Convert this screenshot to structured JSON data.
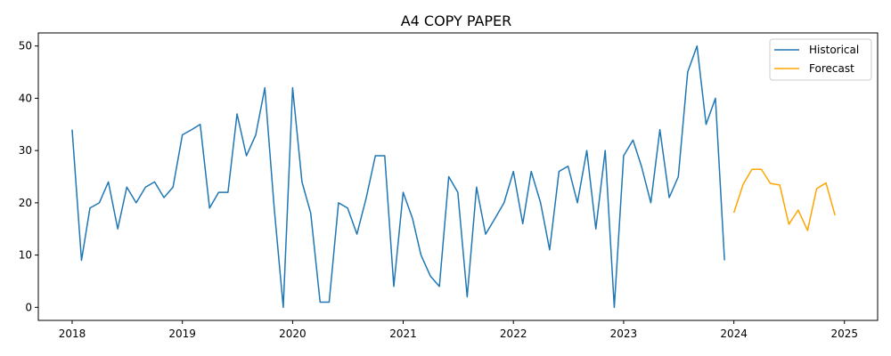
{
  "chart_data": {
    "type": "line",
    "title": "A4  COPY PAPER",
    "xlabel": "",
    "ylabel": "",
    "x_axis": "monthly dates",
    "xlim": [
      "2017-09-11",
      "2025-04-21"
    ],
    "ylim": [
      -2.5,
      52.5
    ],
    "x_ticks": [
      "2018",
      "2019",
      "2020",
      "2021",
      "2022",
      "2023",
      "2024",
      "2025"
    ],
    "y_ticks": [
      "0",
      "10",
      "20",
      "30",
      "40",
      "50"
    ],
    "grid": false,
    "legend_position": "top-right",
    "series": [
      {
        "name": "Historical",
        "color": "#1f77b4",
        "x": [
          "2018-01",
          "2018-02",
          "2018-03",
          "2018-04",
          "2018-05",
          "2018-06",
          "2018-07",
          "2018-08",
          "2018-09",
          "2018-10",
          "2018-11",
          "2018-12",
          "2019-01",
          "2019-02",
          "2019-03",
          "2019-04",
          "2019-05",
          "2019-06",
          "2019-07",
          "2019-08",
          "2019-09",
          "2019-10",
          "2019-11",
          "2019-12",
          "2020-01",
          "2020-02",
          "2020-03",
          "2020-04",
          "2020-05",
          "2020-06",
          "2020-07",
          "2020-08",
          "2020-09",
          "2020-10",
          "2020-11",
          "2020-12",
          "2021-01",
          "2021-02",
          "2021-03",
          "2021-04",
          "2021-05",
          "2021-06",
          "2021-07",
          "2021-08",
          "2021-09",
          "2021-10",
          "2021-11",
          "2021-12",
          "2022-01",
          "2022-02",
          "2022-03",
          "2022-04",
          "2022-05",
          "2022-06",
          "2022-07",
          "2022-08",
          "2022-09",
          "2022-10",
          "2022-11",
          "2022-12",
          "2023-01",
          "2023-02",
          "2023-03",
          "2023-04",
          "2023-05",
          "2023-06",
          "2023-07",
          "2023-08",
          "2023-09",
          "2023-10",
          "2023-11",
          "2023-12"
        ],
        "values": [
          34,
          9,
          19,
          20,
          24,
          15,
          23,
          20,
          23,
          24,
          21,
          23,
          33,
          34,
          35,
          19,
          22,
          22,
          37,
          29,
          33,
          42,
          19,
          0,
          42,
          24,
          18,
          1,
          1,
          20,
          19,
          14,
          21,
          29,
          29,
          4,
          22,
          17,
          10,
          6,
          4,
          25,
          22,
          2,
          23,
          14,
          17,
          20,
          26,
          16,
          26,
          20,
          11,
          26,
          27,
          20,
          30,
          15,
          30,
          0,
          29,
          32,
          27,
          20,
          34,
          21,
          25,
          45,
          50,
          35,
          40,
          9
        ]
      },
      {
        "name": "Forecast",
        "color": "#ffa500",
        "x": [
          "2024-01",
          "2024-02",
          "2024-03",
          "2024-04",
          "2024-05",
          "2024-06",
          "2024-07",
          "2024-08",
          "2024-09",
          "2024-10",
          "2024-11",
          "2024-12"
        ],
        "values": [
          18.1,
          23.6,
          26.4,
          26.4,
          23.7,
          23.4,
          15.9,
          18.6,
          14.7,
          22.7,
          23.8,
          17.6
        ]
      }
    ]
  }
}
